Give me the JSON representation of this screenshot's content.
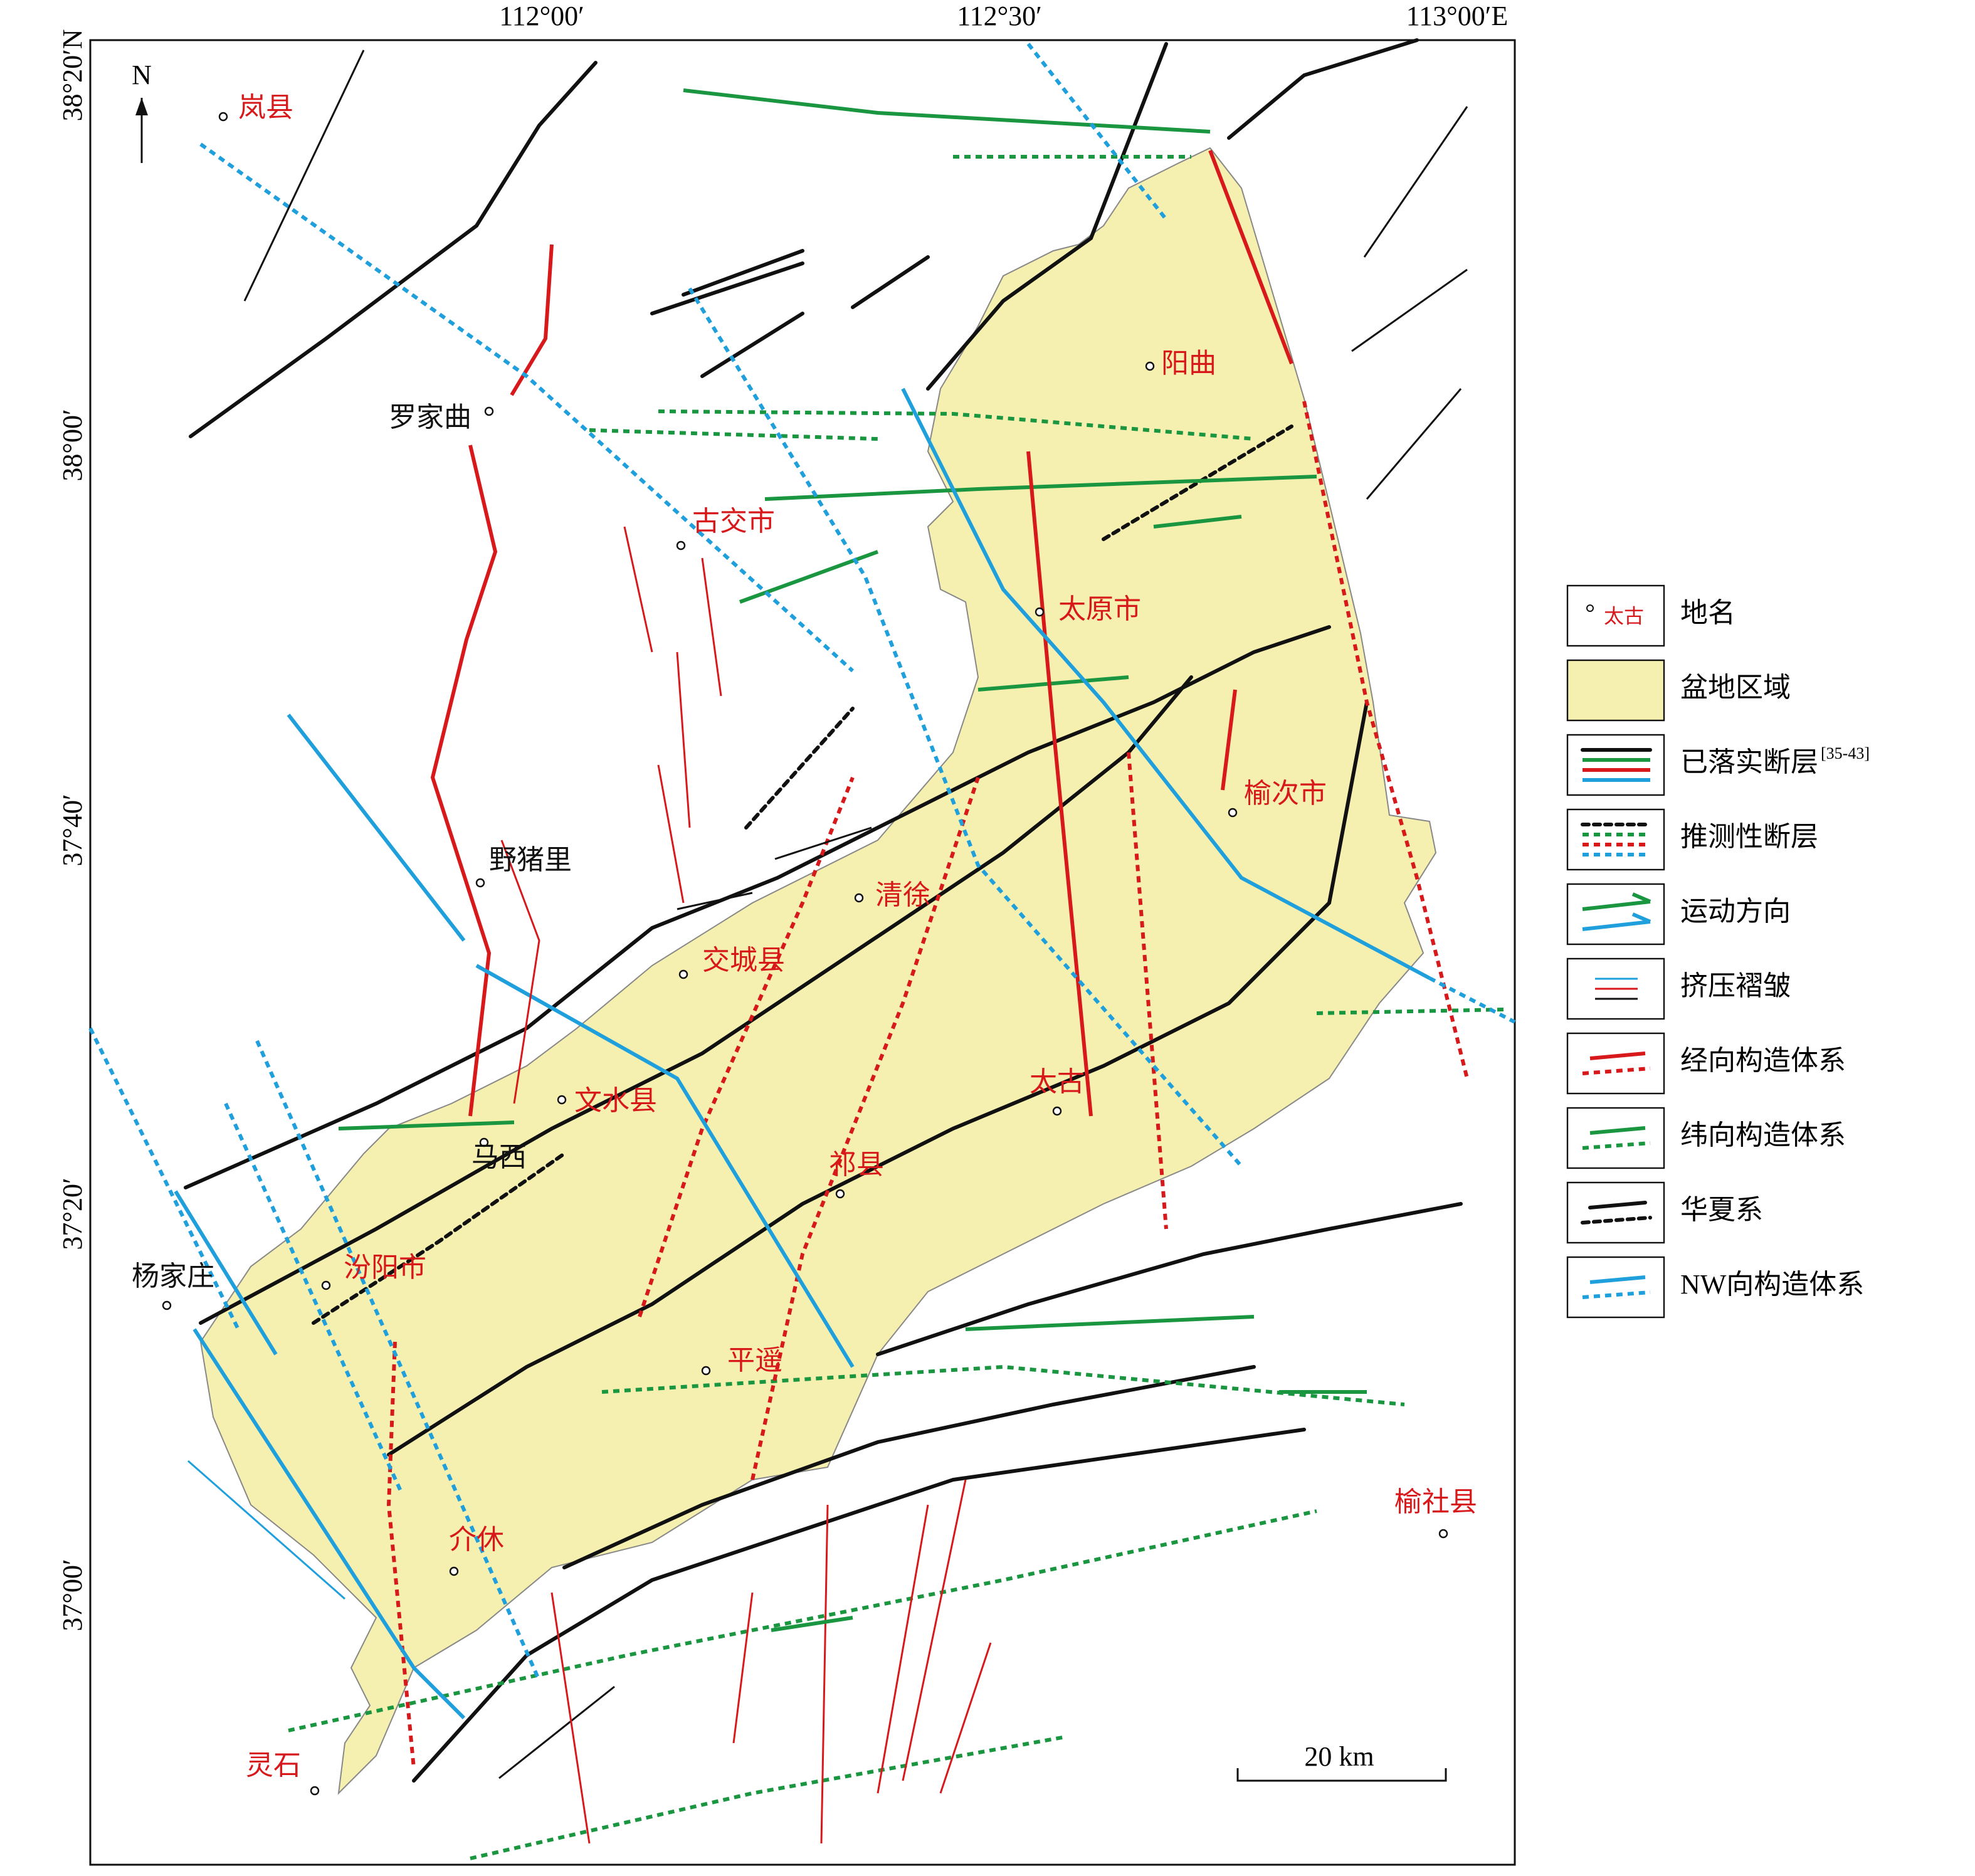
{
  "map": {
    "top_labels": [
      "112°00′",
      "112°30′",
      "113°00′E"
    ],
    "left_labels": [
      "38°20′N",
      "38°00′",
      "37°40′",
      "37°20′",
      "37°00′"
    ],
    "north": "N",
    "places": [
      {
        "label": "岚县",
        "color": "#d7191c"
      },
      {
        "label": "罗家曲",
        "color": "#111111"
      },
      {
        "label": "古交市",
        "color": "#d7191c"
      },
      {
        "label": "阳曲",
        "color": "#d7191c"
      },
      {
        "label": "太原市",
        "color": "#d7191c"
      },
      {
        "label": "榆次市",
        "color": "#d7191c"
      },
      {
        "label": "野猪里",
        "color": "#111111"
      },
      {
        "label": "清徐",
        "color": "#d7191c"
      },
      {
        "label": "交城县",
        "color": "#d7191c"
      },
      {
        "label": "文水县",
        "color": "#d7191c"
      },
      {
        "label": "太古",
        "color": "#d7191c"
      },
      {
        "label": "马西",
        "color": "#111111"
      },
      {
        "label": "祁县",
        "color": "#d7191c"
      },
      {
        "label": "杨家庄",
        "color": "#111111"
      },
      {
        "label": "汾阳市",
        "color": "#d7191c"
      },
      {
        "label": "平遥",
        "color": "#d7191c"
      },
      {
        "label": "介休",
        "color": "#d7191c"
      },
      {
        "label": "灵石",
        "color": "#d7191c"
      },
      {
        "label": "榆社县",
        "color": "#d7191c"
      }
    ],
    "scale_bar": "20 km",
    "legend": [
      {
        "label": "地名",
        "sample": "太古"
      },
      {
        "label": "盆地区域"
      },
      {
        "label": "已落实断层",
        "ref": "[35-43]"
      },
      {
        "label": "推测性断层"
      },
      {
        "label": "运动方向"
      },
      {
        "label": "挤压褶皱"
      },
      {
        "label": "经向构造体系"
      },
      {
        "label": "纬向构造体系"
      },
      {
        "label": "华夏系"
      },
      {
        "label": "NW向构造体系"
      }
    ]
  }
}
